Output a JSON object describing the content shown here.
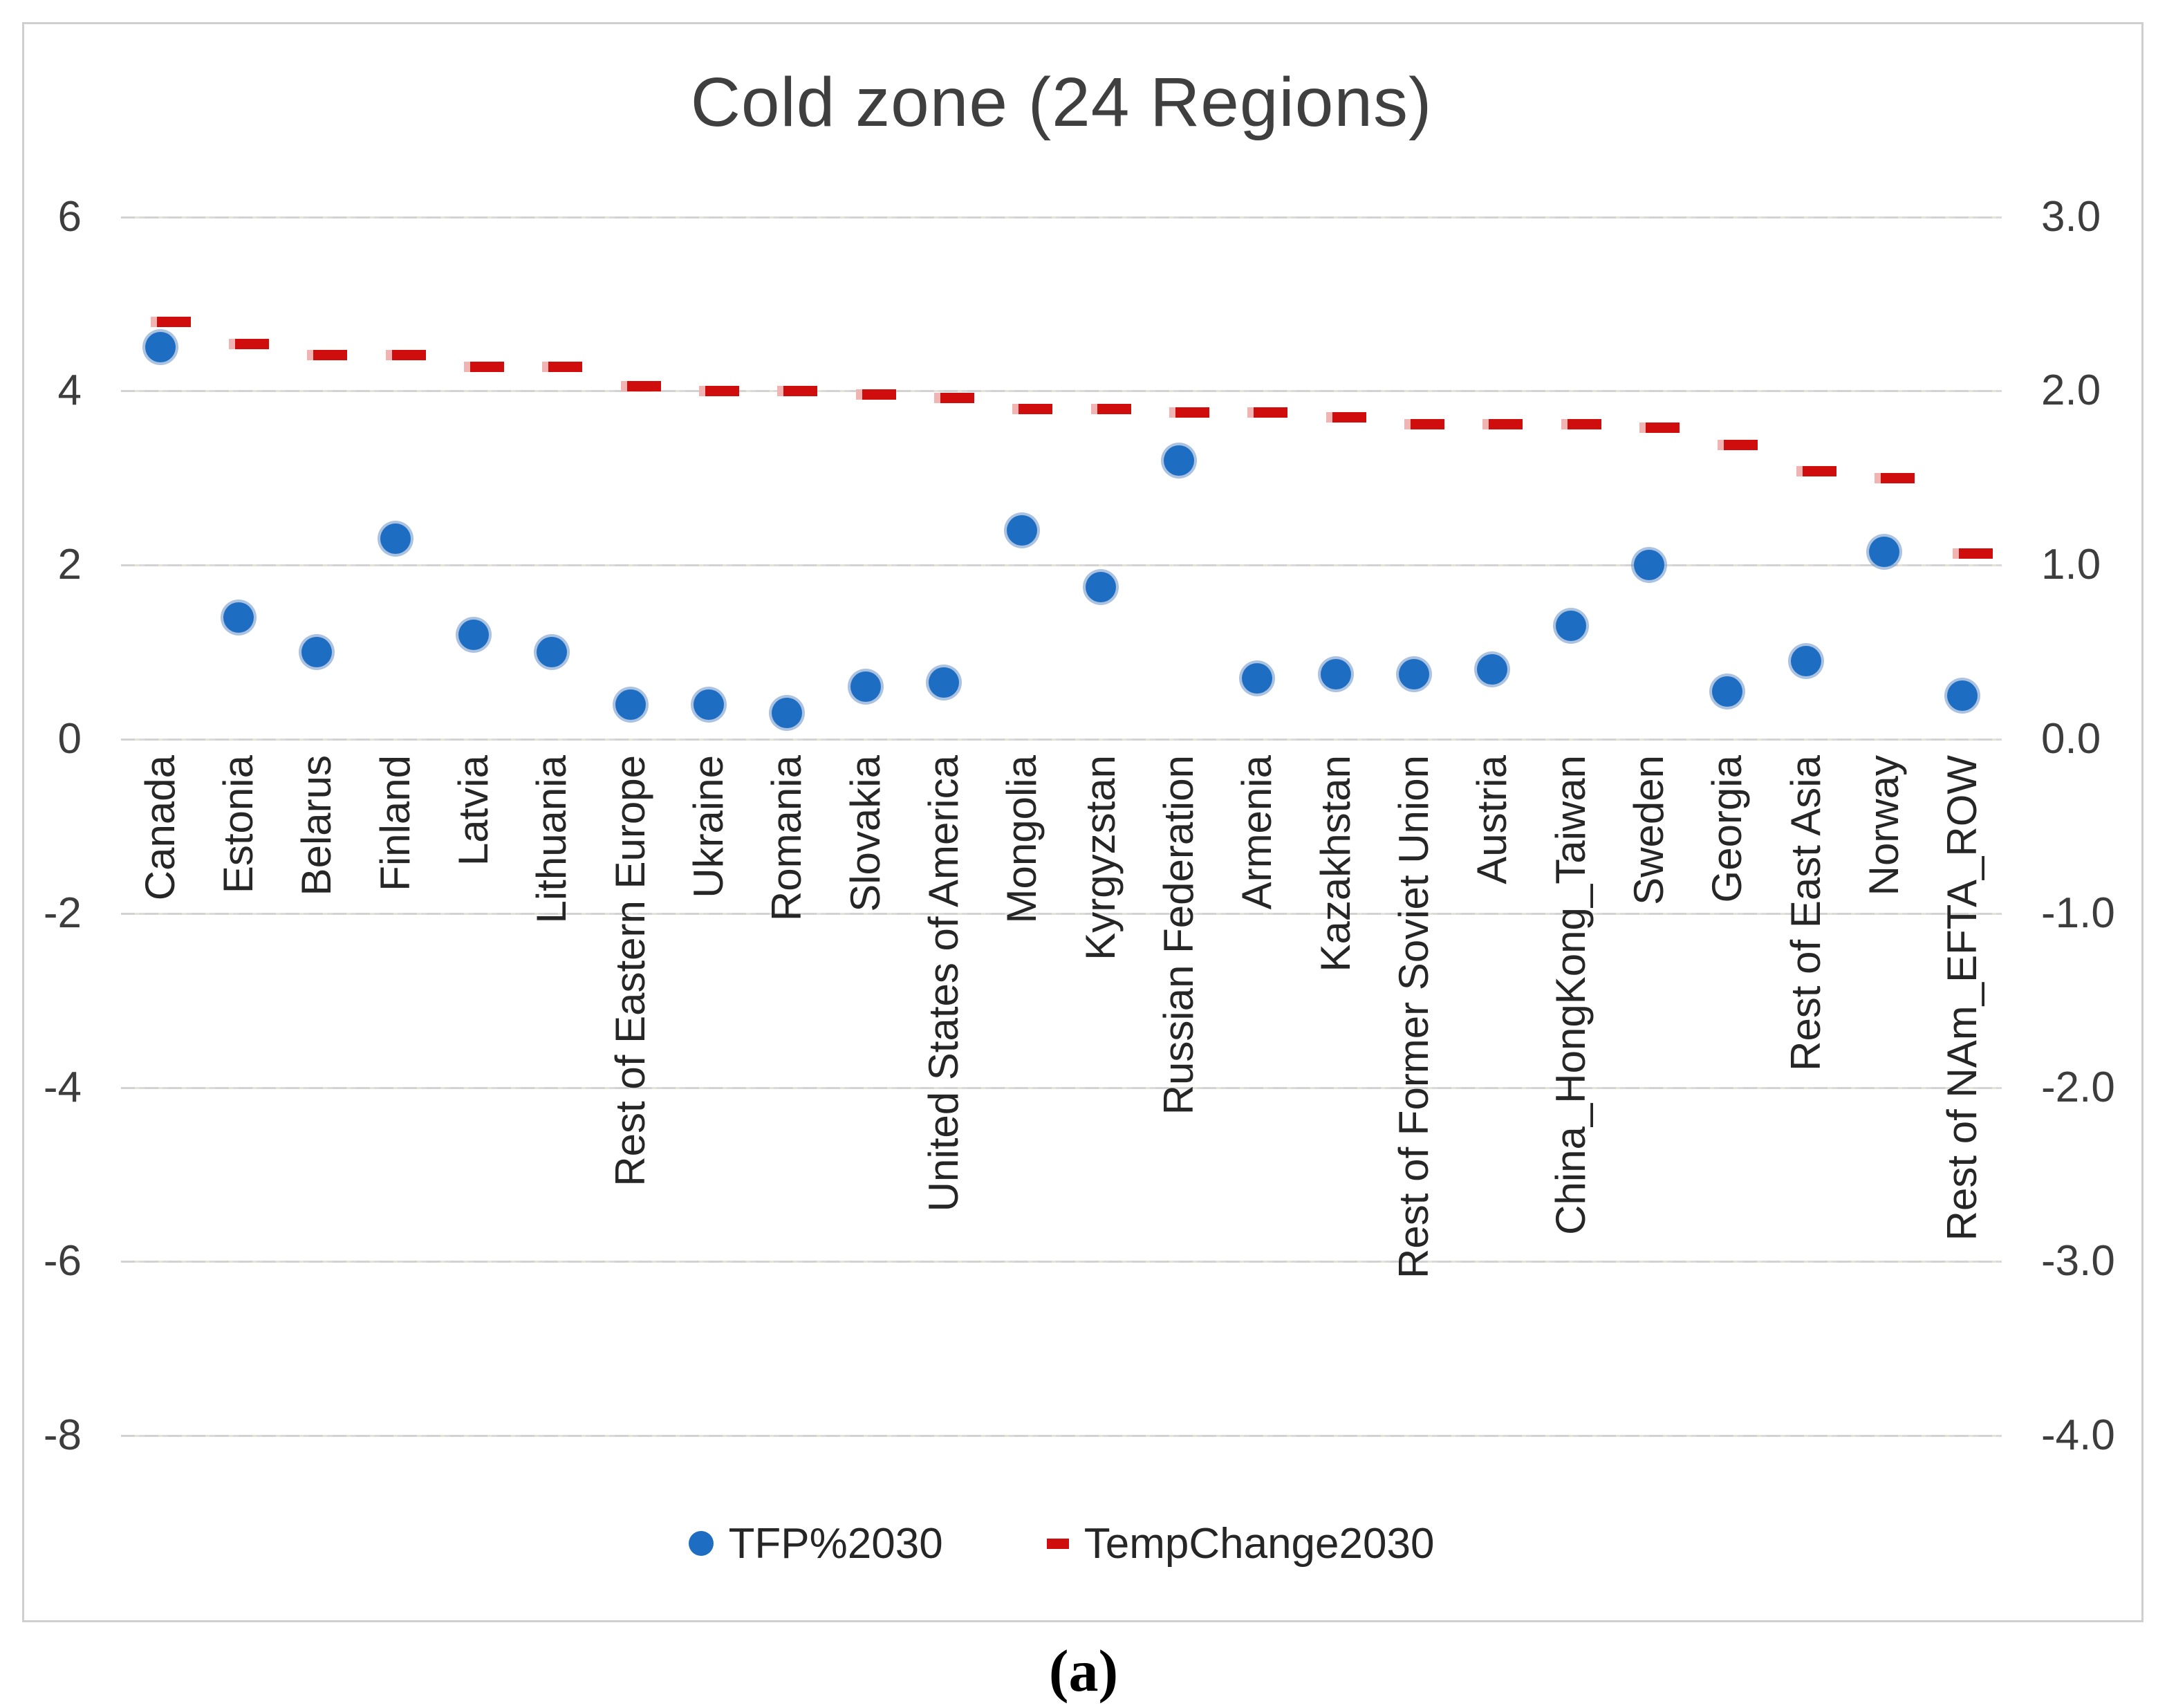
{
  "title": "Cold zone (24 Regions)",
  "caption": "(a)",
  "legend": [
    {
      "label": "TFP%2030",
      "marker": "dot",
      "color": "#1d6ec3"
    },
    {
      "label": "TempChange2030",
      "marker": "dash",
      "color": "#cf0d0d"
    }
  ],
  "left_axis": {
    "ticks": [
      "6",
      "4",
      "2",
      "0",
      "-2",
      "-4",
      "-6",
      "-8"
    ]
  },
  "right_axis": {
    "ticks": [
      "3.0",
      "2.0",
      "1.0",
      "0.0",
      "-1.0",
      "-2.0",
      "-3.0",
      "-4.0"
    ]
  },
  "chart_data": {
    "type": "scatter",
    "title": "Cold zone (24 Regions)",
    "xlabel": "",
    "ylabel_left": "",
    "ylabel_right": "",
    "left_ylim": [
      -8,
      6
    ],
    "right_ylim": [
      -4.0,
      3.0
    ],
    "grid": true,
    "legend_position": "bottom",
    "categories": [
      "Canada",
      "Estonia",
      "Belarus",
      "Finland",
      "Latvia",
      "Lithuania",
      "Rest of Eastern Europe",
      "Ukraine",
      "Romania",
      "Slovakia",
      "United States of America",
      "Mongolia",
      "Kyrgyzstan",
      "Russian Federation",
      "Armenia",
      "Kazakhstan",
      "Rest of Former Soviet Union",
      "Austria",
      "China_HongKong_Taiwan",
      "Sweden",
      "Georgia",
      "Rest of East Asia",
      "Norway",
      "Rest of NAm_EFTA_ROW"
    ],
    "series": [
      {
        "name": "TFP%2030",
        "axis": "left",
        "marker": "dot",
        "color": "#1d6ec3",
        "values": [
          4.5,
          1.4,
          1.0,
          2.3,
          1.2,
          1.0,
          0.4,
          0.4,
          0.3,
          0.6,
          0.65,
          2.4,
          1.75,
          3.2,
          0.7,
          0.75,
          0.75,
          0.8,
          1.3,
          2.0,
          0.55,
          0.9,
          2.15,
          0.5
        ]
      },
      {
        "name": "TempChange2030",
        "axis": "right",
        "marker": "dash",
        "color": "#cf0d0d",
        "values": [
          2.4,
          2.27,
          2.21,
          2.21,
          2.14,
          2.14,
          2.03,
          2.0,
          2.0,
          1.98,
          1.96,
          1.9,
          1.9,
          1.88,
          1.88,
          1.85,
          1.81,
          1.81,
          1.81,
          1.79,
          1.69,
          1.54,
          1.5,
          1.07
        ]
      }
    ]
  }
}
